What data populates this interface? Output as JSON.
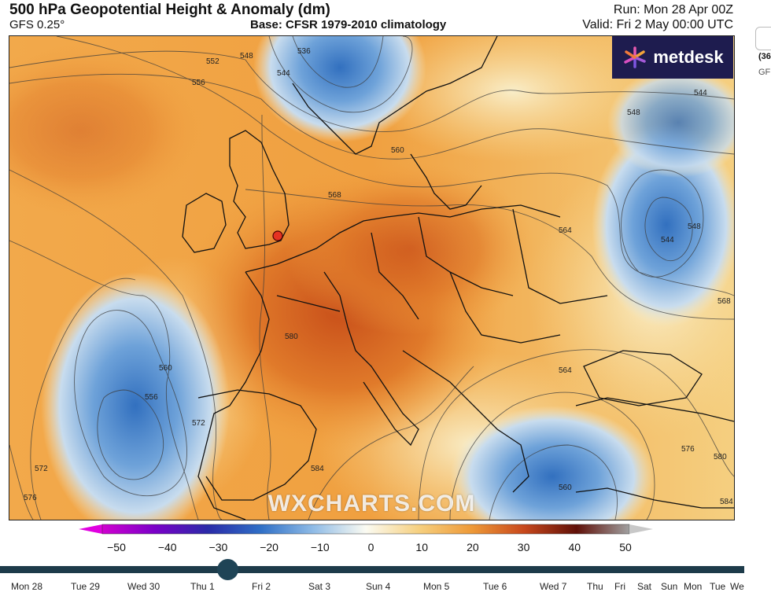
{
  "header": {
    "title": "500 hPa Geopotential Height & Anomaly (dm)",
    "model": "GFS 0.25°",
    "base": "Base: CFSR 1979-2010 climatology",
    "run": "Run: Mon 28 Apr 00Z",
    "valid": "Valid: Fri 2 May 00:00 UTC"
  },
  "logo": {
    "text": "metdesk"
  },
  "watermark": "WXCHARTS.COM",
  "side_panel": {
    "line1": "(36",
    "line2": "GF"
  },
  "map": {
    "contour_labels": [
      "552",
      "548",
      "536",
      "544",
      "556",
      "560",
      "568",
      "564",
      "548",
      "544",
      "548",
      "544",
      "568",
      "580",
      "560",
      "556",
      "572",
      "572",
      "576",
      "584",
      "564",
      "560",
      "576",
      "580",
      "584"
    ],
    "location_marker_color": "#e53222"
  },
  "colorbar": {
    "ticks": [
      "−50",
      "−40",
      "−30",
      "−20",
      "−10",
      "0",
      "10",
      "20",
      "30",
      "40",
      "50"
    ],
    "colors": {
      "min_arrow": "#e000e0",
      "max_arrow": "#c8c8c8"
    }
  },
  "timeline": {
    "days": [
      "Mon 28",
      "Tue 29",
      "Wed 30",
      "Thu 1",
      "Fri 2",
      "Sat 3",
      "Sun 4",
      "Mon 5",
      "Tue 6",
      "Wed 7",
      "Thu",
      "Fri",
      "Sat",
      "Sun",
      "Mon",
      "Tue",
      "We"
    ],
    "selected": "Fri 2"
  },
  "palette": {
    "warm_orange": "#f0a040",
    "deep_orange": "#d9661f",
    "cool_blue": "#6aa0d8",
    "deep_blue": "#3f7cc4",
    "pale": "#f7e6b8"
  }
}
